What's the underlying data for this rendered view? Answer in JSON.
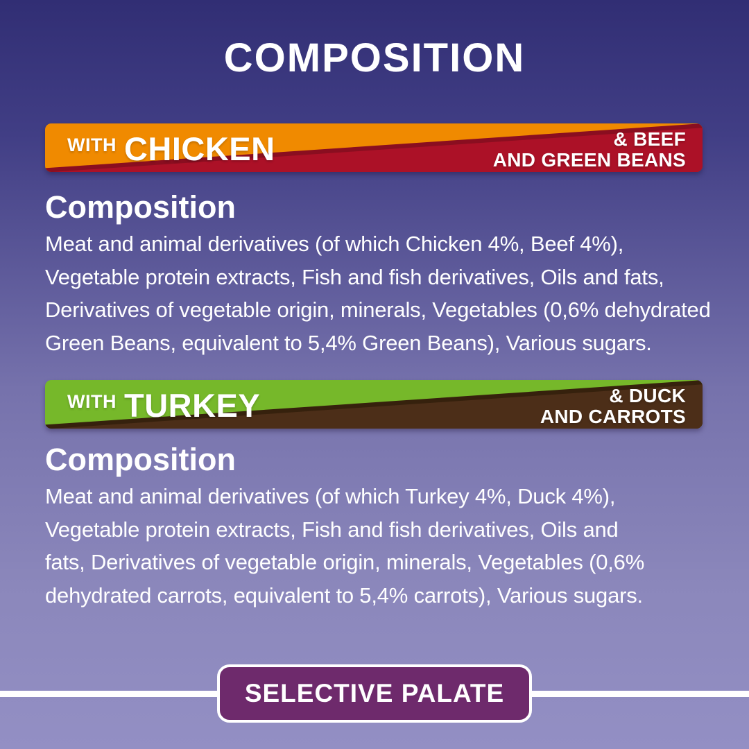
{
  "page": {
    "title": "COMPOSITION"
  },
  "sections": [
    {
      "banner": {
        "with_label": "WITH",
        "flavour": "CHICKEN",
        "right_line1": "& BEEF",
        "right_line2": "AND GREEN BEANS",
        "main_color": "#f08a00",
        "accent_color": "#ac1127",
        "accent_shadow_color": "#8a0e20"
      },
      "heading": "Composition",
      "body_lines": [
        "Meat and animal derivatives (of which Chicken 4%, Beef 4%),",
        "Vegetable protein extracts, Fish and fish derivatives, Oils and fats,",
        "Derivatives of vegetable origin, minerals, Vegetables (0,6% dehydrated",
        "Green Beans, equivalent to 5,4% Green Beans), Various sugars."
      ]
    },
    {
      "banner": {
        "with_label": "WITH",
        "flavour": "TURKEY",
        "right_line1": "& DUCK",
        "right_line2": "AND CARROTS",
        "main_color": "#76b82a",
        "accent_color": "#4c2e18",
        "accent_shadow_color": "#36210d"
      },
      "heading": "Composition",
      "body_lines": [
        "Meat and animal derivatives (of which Turkey 4%, Duck 4%),",
        "Vegetable protein extracts, Fish and fish derivatives, Oils and",
        "fats, Derivatives of vegetable origin, minerals, Vegetables (0,6%",
        "dehydrated carrots, equivalent to 5,4% carrots), Various sugars."
      ]
    }
  ],
  "footer": {
    "badge_label": "SELECTIVE PALATE",
    "badge_color": "#6e2a6c",
    "line_color": "#ffffff"
  },
  "colors": {
    "background_top": "#312e74",
    "background_bottom": "#938fc4",
    "text": "#ffffff"
  }
}
